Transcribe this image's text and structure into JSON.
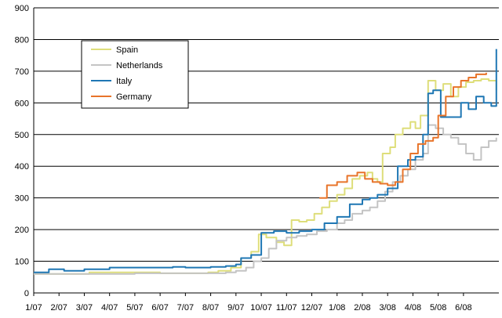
{
  "chart_data": {
    "type": "line",
    "categories": [
      "1/07",
      "2/07",
      "3/07",
      "4/07",
      "5/07",
      "6/07",
      "7/07",
      "8/07",
      "9/07",
      "10/07",
      "11/07",
      "12/07",
      "1/08",
      "2/08",
      "3/08",
      "4/08",
      "5/08",
      "6/08"
    ],
    "ylim": [
      0,
      900
    ],
    "yticks": [
      0,
      100,
      200,
      300,
      400,
      500,
      600,
      700,
      800,
      900
    ],
    "xlim": [
      0,
      18.4
    ],
    "grid": "horizontal",
    "legend": "top-left",
    "title": "",
    "xlabel": "",
    "ylabel": "",
    "series": [
      {
        "name": "Spain",
        "color": "#dede7a",
        "x": [
          0,
          2,
          2.2,
          4,
          5,
          6,
          6.9,
          7.3,
          7.8,
          8.2,
          8.6,
          8.9,
          9.2,
          9.6,
          9.9,
          10.2,
          10.5,
          10.8,
          11.1,
          11.4,
          11.7,
          12.0,
          12.3,
          12.6,
          12.9,
          13.2,
          13.4,
          13.6,
          13.8,
          14.1,
          14.3,
          14.6,
          14.9,
          15.1,
          15.3,
          15.6,
          15.9,
          16.2,
          16.5,
          16.8,
          17.1,
          17.4,
          17.7,
          18.0,
          18.3
        ],
        "y": [
          60,
          60,
          65,
          65,
          62,
          62,
          65,
          70,
          80,
          110,
          130,
          185,
          175,
          160,
          150,
          230,
          225,
          230,
          250,
          270,
          290,
          310,
          330,
          360,
          370,
          380,
          360,
          350,
          440,
          460,
          500,
          520,
          540,
          520,
          560,
          670,
          640,
          660,
          620,
          650,
          665,
          670,
          675,
          670,
          640
        ]
      },
      {
        "name": "Netherlands",
        "color": "#c4c4c4",
        "x": [
          0,
          2,
          4,
          6,
          7,
          7.6,
          8,
          8.4,
          8.7,
          9,
          9.3,
          9.6,
          10,
          10.4,
          10.8,
          11.2,
          11.6,
          12,
          12.3,
          12.6,
          13,
          13.3,
          13.6,
          13.9,
          14.2,
          14.5,
          14.8,
          15.1,
          15.4,
          15.6,
          15.9,
          16.2,
          16.5,
          16.8,
          17.1,
          17.4,
          17.7,
          18.0,
          18.3
        ],
        "y": [
          60,
          60,
          62,
          62,
          62,
          65,
          70,
          80,
          100,
          110,
          140,
          165,
          175,
          180,
          185,
          195,
          200,
          220,
          230,
          250,
          260,
          270,
          290,
          320,
          350,
          370,
          390,
          420,
          440,
          530,
          520,
          500,
          490,
          470,
          440,
          420,
          460,
          480,
          490
        ]
      },
      {
        "name": "Italy",
        "color": "#1f77b4",
        "x": [
          0,
          0.5,
          0.6,
          1.2,
          1.6,
          2,
          3,
          4,
          5,
          5.5,
          6,
          6.5,
          7,
          7.6,
          8,
          8.2,
          8.6,
          9,
          9.5,
          10,
          10.5,
          11,
          11.5,
          12,
          12.5,
          13,
          13.3,
          13.6,
          14,
          14.4,
          14.8,
          15.1,
          15.4,
          15.6,
          15.8,
          16.1,
          16.5,
          16.9,
          17.2,
          17.5,
          17.8,
          18.1,
          18.3
        ],
        "y": [
          65,
          65,
          75,
          70,
          70,
          75,
          80,
          80,
          80,
          82,
          80,
          80,
          82,
          85,
          90,
          110,
          120,
          190,
          195,
          190,
          195,
          200,
          220,
          240,
          280,
          295,
          300,
          310,
          330,
          400,
          420,
          430,
          500,
          630,
          640,
          555,
          555,
          600,
          580,
          620,
          600,
          590,
          770
        ]
      },
      {
        "name": "Germany",
        "color": "#e8742a",
        "x": [
          11.3,
          11.6,
          12.0,
          12.4,
          12.8,
          13.1,
          13.4,
          13.7,
          14.0,
          14.3,
          14.6,
          14.9,
          15.2,
          15.5,
          15.8,
          16.0,
          16.3,
          16.6,
          16.9,
          17.2,
          17.5,
          17.9
        ],
        "y": [
          300,
          340,
          350,
          370,
          380,
          360,
          350,
          345,
          340,
          350,
          390,
          440,
          470,
          480,
          490,
          560,
          620,
          650,
          670,
          680,
          690,
          695
        ]
      }
    ]
  }
}
